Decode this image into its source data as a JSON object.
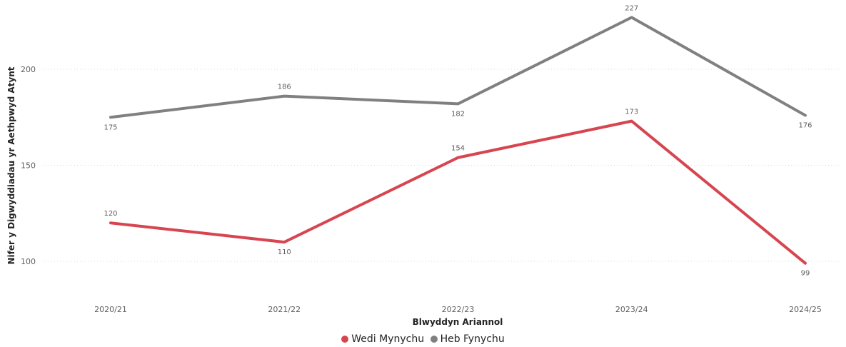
{
  "chart_data": {
    "type": "line",
    "xlabel": "Blwyddyn Ariannol",
    "ylabel": "Nifer y Digwyddiadau yr Aethpwyd Atynt",
    "categories": [
      "2020/21",
      "2021/22",
      "2022/23",
      "2023/24",
      "2024/25"
    ],
    "ylim": [
      88,
      230
    ],
    "yticks": [
      100,
      150,
      200
    ],
    "grid": true,
    "legend_position": "bottom-center",
    "series": [
      {
        "name": "Wedi Mynychu",
        "color": "#d64550",
        "values": [
          120,
          110,
          154,
          173,
          99
        ]
      },
      {
        "name": "Heb Fynychu",
        "color": "#808080",
        "values": [
          175,
          186,
          182,
          227,
          176
        ]
      }
    ]
  }
}
